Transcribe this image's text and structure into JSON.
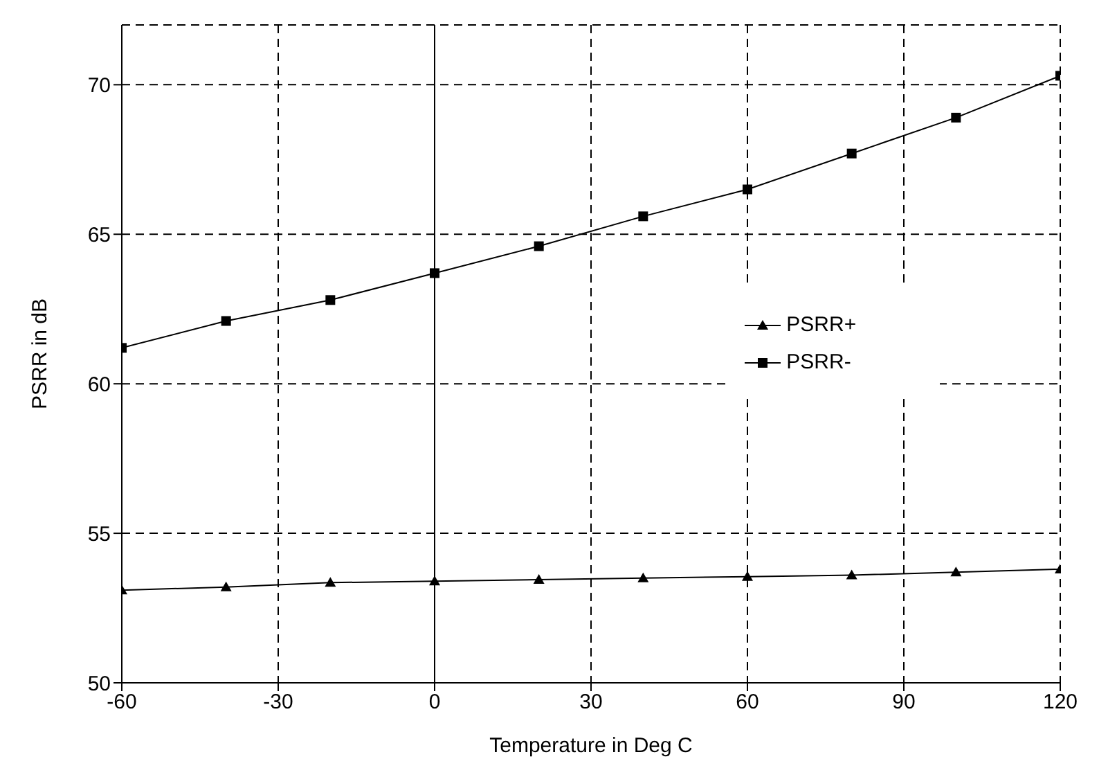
{
  "chart_data": {
    "type": "line",
    "xlabel": "Temperature in Deg C",
    "ylabel": "PSRR in dB",
    "x": [
      -60,
      -40,
      -20,
      0,
      20,
      40,
      60,
      80,
      100,
      120
    ],
    "series": [
      {
        "name": "PSRR+",
        "color": "#000000",
        "marker": "triangle",
        "values": [
          53.1,
          53.2,
          53.35,
          53.4,
          53.45,
          53.5,
          53.55,
          53.6,
          53.7,
          53.8
        ]
      },
      {
        "name": "PSRR-",
        "color": "#000000",
        "marker": "square",
        "values": [
          61.2,
          62.1,
          62.8,
          63.7,
          64.6,
          65.6,
          66.5,
          67.7,
          68.9,
          70.3
        ]
      }
    ],
    "xlim": [
      -60,
      120
    ],
    "xticks": [
      -60,
      -30,
      0,
      30,
      60,
      90,
      120
    ],
    "ylim": [
      50,
      72
    ],
    "yticks": [
      50,
      55,
      60,
      65,
      70
    ],
    "grid": true,
    "legend": "right",
    "line_style": "solid",
    "ref_lines": [
      {
        "axis": "x",
        "value": 0,
        "color": "#000000",
        "line_style": "solid"
      }
    ]
  }
}
